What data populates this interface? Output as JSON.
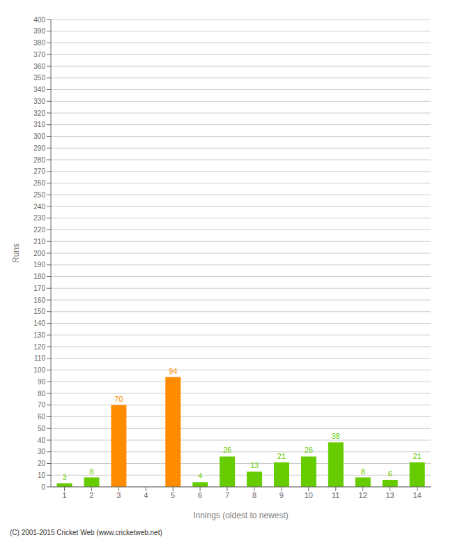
{
  "chart_data": {
    "type": "bar",
    "categories": [
      "1",
      "2",
      "3",
      "4",
      "5",
      "6",
      "7",
      "8",
      "9",
      "10",
      "11",
      "12",
      "13",
      "14"
    ],
    "values": [
      3,
      8,
      70,
      0,
      94,
      4,
      26,
      13,
      21,
      26,
      38,
      8,
      6,
      21
    ],
    "colors": [
      "#66cc00",
      "#66cc00",
      "#ff8c00",
      "#66cc00",
      "#ff8c00",
      "#66cc00",
      "#66cc00",
      "#66cc00",
      "#66cc00",
      "#66cc00",
      "#66cc00",
      "#66cc00",
      "#66cc00",
      "#66cc00"
    ],
    "xlabel": "Innings (oldest to newest)",
    "ylabel": "Runs",
    "ylim": [
      0,
      400
    ],
    "yticks": [
      0,
      10,
      20,
      30,
      40,
      50,
      60,
      70,
      80,
      90,
      100,
      110,
      120,
      130,
      140,
      150,
      160,
      170,
      180,
      190,
      200,
      210,
      220,
      230,
      240,
      250,
      260,
      270,
      280,
      290,
      300,
      310,
      320,
      330,
      340,
      350,
      360,
      370,
      380,
      390,
      400
    ],
    "grid": true,
    "data_labels": true,
    "annotations": [
      "(C) 2001-2015 Cricket Web (www.cricketweb.net)"
    ]
  }
}
